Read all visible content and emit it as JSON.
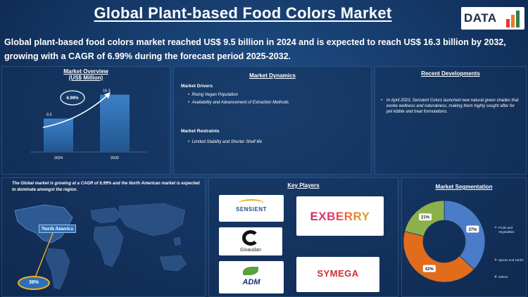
{
  "header": {
    "title": "Global Plant-based Food Colors Market",
    "logo_text": "DATA",
    "summary": "Global plant-based food colors market reached US$ 9.5 billion in 2024 and is expected to reach US$ 16.3 billion by 2032, growing with a CAGR of 6.99% during the forecast period 2025-2032."
  },
  "overview": {
    "title": "Market Overview",
    "subtitle": "(US$ Million)",
    "cagr_badge": "6.99%",
    "bar_color": "#2f6fb5"
  },
  "chart_data": [
    {
      "type": "bar",
      "title": "Market Overview",
      "subtitle": "(US$ Million)",
      "categories": [
        "2024",
        "2032"
      ],
      "values": [
        9.5,
        16.3
      ],
      "data_labels": [
        "9.5",
        "16.3"
      ],
      "ylim": [
        0,
        18
      ],
      "grid": false
    },
    {
      "type": "pie",
      "title": "Market Segmentation",
      "labels": [
        "Fruits and Vegetables",
        "Spices and Herbs",
        "Others"
      ],
      "values": [
        37,
        42,
        21
      ],
      "data_labels": [
        "37%",
        "42%",
        "21%"
      ],
      "colors": [
        "#4a7cc8",
        "#e06c1c",
        "#8db14a"
      ],
      "donut": true
    }
  ],
  "dynamics": {
    "title": "Market Dynamics",
    "drivers_heading": "Market Drivers",
    "drivers": [
      "Rising Vegan Population",
      "Availability and Advancement of Extraction Methods"
    ],
    "restraints_heading": "Market Restraints",
    "restraints": [
      "Limited Stability and Shorter Shelf life"
    ]
  },
  "developments": {
    "title": "Recent Developments",
    "items": [
      "In April 2023, Sensient Colors launched new natural green shades that evoke wellness and naturalness, making them highly sought after for pet kibble and treat formulations."
    ]
  },
  "map": {
    "caption_pre": "The Global market is growing at a CAGR of ",
    "caption_cagr": "6.99%",
    "caption_mid": " and the North American market is expected to dominate amongst the region.",
    "region_label": "North America",
    "region_share": "38%"
  },
  "players": {
    "title": "Key Players",
    "names": [
      "SENSIENT",
      "EXBERRY",
      "Givaudan",
      "ADM",
      "SYMEGA"
    ]
  },
  "segmentation": {
    "title": "Market Segmentation"
  }
}
